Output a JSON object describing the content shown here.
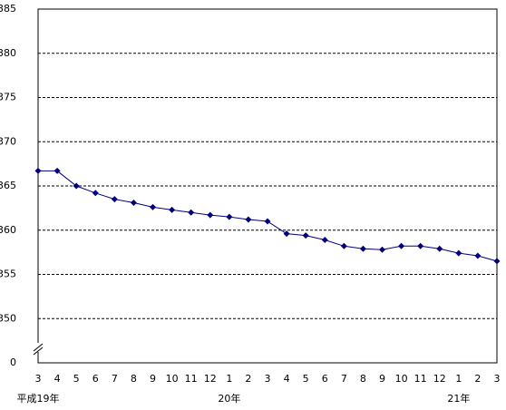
{
  "chart_data": {
    "type": "line",
    "categories": [
      "3",
      "4",
      "5",
      "6",
      "7",
      "8",
      "9",
      "10",
      "11",
      "12",
      "1",
      "2",
      "3",
      "4",
      "5",
      "6",
      "7",
      "8",
      "9",
      "10",
      "11",
      "12",
      "1",
      "2",
      "3"
    ],
    "x_groups": [
      "平成19年",
      null,
      null,
      null,
      null,
      null,
      null,
      null,
      null,
      null,
      "20年",
      null,
      null,
      null,
      null,
      null,
      null,
      null,
      null,
      null,
      null,
      null,
      "21年",
      null,
      null
    ],
    "series": [
      {
        "color": "#000080",
        "values": [
          366.7,
          366.7,
          365.0,
          364.2,
          363.5,
          363.1,
          362.6,
          362.3,
          362.0,
          361.7,
          361.5,
          361.2,
          361.0,
          359.6,
          359.4,
          358.9,
          358.2,
          357.9,
          357.8,
          358.2,
          358.2,
          357.9,
          357.4,
          357.1,
          356.5
        ]
      }
    ],
    "ylim": [
      345,
      385
    ],
    "yticks": [
      350,
      355,
      360,
      365,
      370,
      375,
      380,
      385
    ],
    "y_break_label": "0",
    "grid": true
  }
}
